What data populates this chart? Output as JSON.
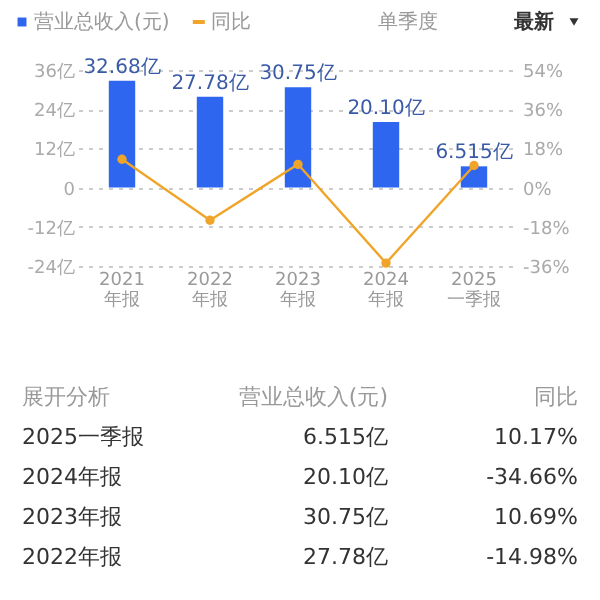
{
  "chart_data": {
    "type": "bar",
    "categories": [
      "2021\n年报",
      "2022\n年报",
      "2023\n年报",
      "2024\n年报",
      "2025\n一季报"
    ],
    "series": [
      {
        "name": "营业总收入(元)",
        "color": "#2f66f0",
        "values": [
          32.68,
          27.78,
          30.75,
          20.1,
          6.515
        ],
        "value_labels": [
          "32.68亿",
          "27.78亿",
          "30.75亿",
          "20.10亿",
          "6.515亿"
        ]
      },
      {
        "name": "同比",
        "type": "line",
        "axis": "y2",
        "color": "#f0a52a",
        "values": [
          13,
          -14.98,
          10.69,
          -34.66,
          10.17
        ],
        "marker": "circle"
      }
    ],
    "ylim": [
      -24,
      36
    ],
    "yticks": [
      {
        "value": -24,
        "label": "-24亿"
      },
      {
        "value": -12,
        "label": "-12亿"
      },
      0,
      {
        "value": 12,
        "label": "12亿"
      },
      {
        "value": 24,
        "label": "24亿"
      },
      {
        "value": 36,
        "label": "36亿"
      }
    ],
    "y2lim": [
      -36,
      54
    ],
    "y2ticks": [
      {
        "value": -36,
        "label": "-36%"
      },
      {
        "value": -18,
        "label": "-18%"
      },
      {
        "value": 0,
        "label": "0%"
      },
      {
        "value": 18,
        "label": "18%"
      },
      {
        "value": 36,
        "label": "36%"
      },
      {
        "value": 54,
        "label": "54%"
      }
    ],
    "grid": "y",
    "legend": "top left",
    "annotations": [
      "单季度",
      "最新",
      "展开分析",
      "营业总收入(元)",
      "同比",
      "2025一季报",
      "6.515亿",
      "10.17%",
      "2024年报",
      "20.10亿",
      "-34.66%",
      "2023年报",
      "30.75亿",
      "10.69%",
      "2022年报",
      "27.78亿",
      "-14.98%"
    ]
  }
}
